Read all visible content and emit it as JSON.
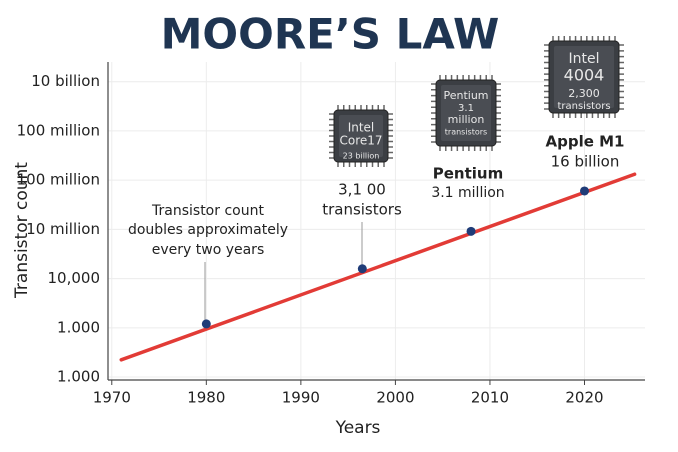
{
  "chart_data": {
    "type": "line",
    "title": "MOORE’S LAW",
    "xlabel": "Years",
    "ylabel": "Transistor count",
    "xlim": [
      1969.6,
      2026.4
    ],
    "xticks": [
      1970,
      1980,
      1990,
      2000,
      2010,
      2020
    ],
    "ylim": [
      -0.06,
      6.4
    ],
    "yticks": [
      {
        "value": 0,
        "label": "1.000"
      },
      {
        "value": 1,
        "label": "1.000"
      },
      {
        "value": 2,
        "label": "10,000"
      },
      {
        "value": 3,
        "label": "10 million"
      },
      {
        "value": 4,
        "label": "100 million"
      },
      {
        "value": 5,
        "label": "100 million"
      },
      {
        "value": 6,
        "label": "10 billion"
      }
    ],
    "grid": true,
    "trend": {
      "x": [
        1971,
        2025.3
      ],
      "values": [
        0.35,
        4.12
      ],
      "color": "#e23b36"
    },
    "points": {
      "x": [
        1980,
        1996.5,
        2008,
        2020
      ],
      "values": [
        1.08,
        2.2,
        2.96,
        3.78
      ],
      "color": "#1f3c78"
    },
    "annotations": [
      {
        "text": [
          "Transistor count",
          "doubles approximately",
          "every two years"
        ]
      },
      {
        "chip": [
          "Intel",
          "Core17",
          "23 billion"
        ],
        "caption": [
          "3,1 00",
          "transistors"
        ]
      },
      {
        "chip": [
          "Pentium",
          "3.1",
          "million",
          "transistors"
        ],
        "caption": [
          "Pentium",
          "3.1 million"
        ]
      },
      {
        "chip": [
          "Intel",
          "4004",
          "2,300",
          "transistors"
        ],
        "caption": [
          "Apple M1",
          "16 billion"
        ]
      }
    ]
  }
}
